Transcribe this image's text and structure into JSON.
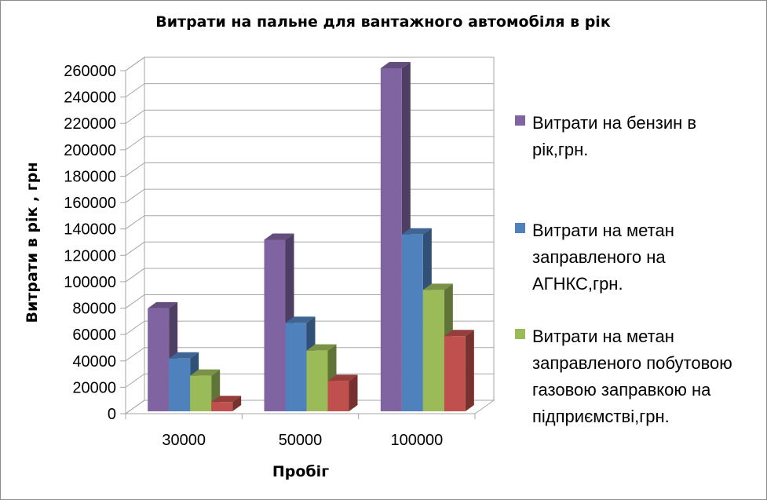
{
  "chart_data": {
    "type": "bar",
    "title": "Витрати на пальне для вантажного автомобіля в рік",
    "xlabel": "Пробіг",
    "ylabel": "Витрати в рік , грн",
    "categories": [
      "30000",
      "50000",
      "100000"
    ],
    "ylim": [
      0,
      260000
    ],
    "y_ticks": [
      "0",
      "20000",
      "40000",
      "60000",
      "80000",
      "100000",
      "120000",
      "140000",
      "160000",
      "180000",
      "200000",
      "220000",
      "240000",
      "260000"
    ],
    "grid": true,
    "legend": "right",
    "three_d": true,
    "series": [
      {
        "name": "Витрати на бензин в рік,грн.",
        "legend_lines": [
          "Витрати на бензин в",
          "рік,грн."
        ],
        "color": "#8064a2",
        "values": [
          78000,
          130000,
          260000
        ]
      },
      {
        "name": "Витрати на метан заправленого на АГНКС,грн.",
        "legend_lines": [
          "Витрати на метан",
          "заправленого на",
          "АГНКС,грн."
        ],
        "color": "#4f81bd",
        "values": [
          40000,
          67000,
          134000
        ]
      },
      {
        "name": "Витрати на метан заправленого побутовою газовою заправкою на підприємстві,грн.",
        "legend_lines": [
          "Витрати на метан",
          "заправленого побутовою",
          "газовою заправкою на",
          "підприємстві,грн."
        ],
        "color": "#9bbb59",
        "values": [
          27000,
          46000,
          92000
        ]
      },
      {
        "color": "#c0504d",
        "values": [
          7000,
          23000,
          57000
        ]
      }
    ]
  }
}
